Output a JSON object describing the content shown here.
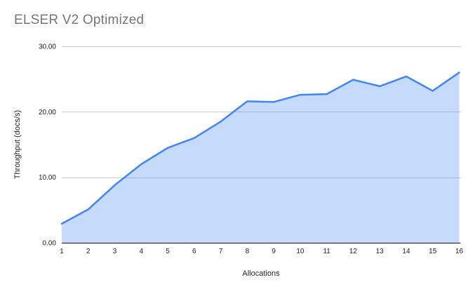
{
  "chart_data": {
    "type": "area",
    "title": "ELSER V2 Optimized",
    "xlabel": "Allocations",
    "ylabel": "Throughput (docs/s)",
    "categories": [
      1,
      2,
      3,
      4,
      5,
      6,
      7,
      8,
      9,
      10,
      11,
      12,
      13,
      14,
      15,
      16
    ],
    "series": [
      {
        "name": "Throughput",
        "values": [
          2.9,
          5.1,
          8.8,
          12.0,
          14.5,
          16.0,
          18.5,
          21.6,
          21.5,
          22.6,
          22.7,
          24.9,
          23.9,
          25.4,
          23.2,
          26.0
        ]
      }
    ],
    "ylim": [
      0,
      30
    ],
    "yticks": [
      0,
      10,
      20,
      30
    ],
    "ytick_labels": [
      "0.00",
      "10.00",
      "20.00",
      "30.00"
    ],
    "grid": true,
    "legend": "none",
    "colors": {
      "line": "#4285f4",
      "fill_opacity": 0.3,
      "gridline": "#cccccc",
      "axis_line": "#333333",
      "tick_text": "#222222",
      "title_text": "#757575"
    }
  }
}
